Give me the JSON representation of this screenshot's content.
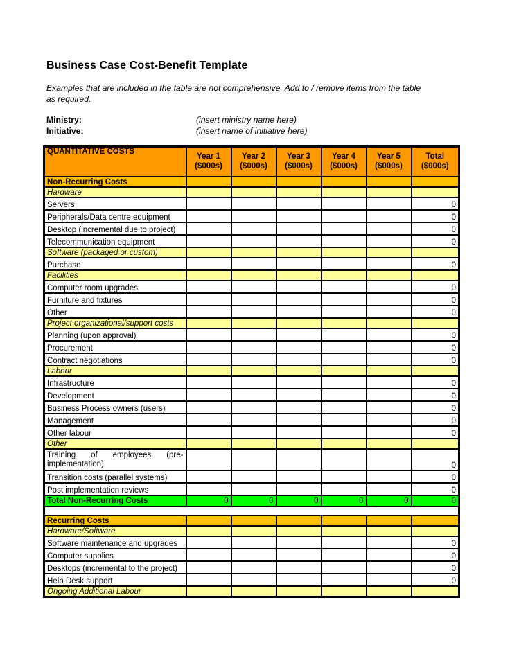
{
  "page": {
    "title": "Business Case Cost-Benefit Template",
    "note": "Examples that are included in the table are not comprehensive.  Add to / remove items from the table\nas required.",
    "fields": [
      {
        "label": "Ministry:",
        "value": "(insert ministry name here)"
      },
      {
        "label": "Initiative:",
        "value": "(insert name of initiative here)"
      }
    ]
  },
  "colors": {
    "header_orange": "#FF9900",
    "section_gold": "#FFC000",
    "subheader_yellow": "#FFFF99",
    "total_green": "#00FF00",
    "border": "#000000"
  },
  "table": {
    "title": "QUANTITATIVE COSTS",
    "columns": [
      {
        "name": "Year 1",
        "unit": "($000s)"
      },
      {
        "name": "Year 2",
        "unit": "($000s)"
      },
      {
        "name": "Year 3",
        "unit": "($000s)"
      },
      {
        "name": "Year 4",
        "unit": "($000s)"
      },
      {
        "name": "Year 5",
        "unit": "($000s)"
      },
      {
        "name": "Total",
        "unit": "($000s)"
      }
    ],
    "rows": [
      {
        "type": "section",
        "label": "Non-Recurring Costs"
      },
      {
        "type": "subheader",
        "label": "Hardware"
      },
      {
        "type": "item",
        "label": "Servers",
        "total": "0"
      },
      {
        "type": "item",
        "label": "Peripherals/Data centre equipment",
        "total": "0"
      },
      {
        "type": "item",
        "label": "Desktop (incremental due to project)",
        "total": "0"
      },
      {
        "type": "item",
        "label": "Telecommunication equipment",
        "total": "0"
      },
      {
        "type": "subheader",
        "label": "Software (packaged or custom)"
      },
      {
        "type": "item",
        "label": "Purchase",
        "total": "0"
      },
      {
        "type": "subheader",
        "label": "Facilities"
      },
      {
        "type": "item",
        "label": "Computer room upgrades",
        "total": "0"
      },
      {
        "type": "item",
        "label": "Furniture and fixtures",
        "total": "0"
      },
      {
        "type": "item",
        "label": "Other",
        "total": "0"
      },
      {
        "type": "subheader",
        "label": "Project organizational/support costs"
      },
      {
        "type": "item",
        "label": "Planning (upon approval)",
        "total": "0"
      },
      {
        "type": "item",
        "label": "Procurement",
        "total": "0"
      },
      {
        "type": "item",
        "label": "Contract negotiations",
        "total": "0"
      },
      {
        "type": "subheader",
        "label": "Labour"
      },
      {
        "type": "item",
        "label": "Infrastructure",
        "total": "0"
      },
      {
        "type": "item",
        "label": "Development",
        "total": "0"
      },
      {
        "type": "item",
        "label": "Business Process owners (users)",
        "total": "0"
      },
      {
        "type": "item",
        "label": "Management",
        "total": "0"
      },
      {
        "type": "item",
        "label": "Other labour",
        "total": "0"
      },
      {
        "type": "subheader",
        "label": "Other"
      },
      {
        "type": "item",
        "label": "Training of employees (pre-implementation)",
        "total": "0",
        "tall": true,
        "justify": true
      },
      {
        "type": "item",
        "label": "Transition costs (parallel systems)",
        "total": "0"
      },
      {
        "type": "item",
        "label": "Post implementation reviews",
        "total": "0"
      },
      {
        "type": "total",
        "label": "Total Non-Recurring Costs",
        "values": [
          "0",
          "0",
          "0",
          "0",
          "0",
          "0"
        ]
      },
      {
        "type": "spacer"
      },
      {
        "type": "section",
        "label": "Recurring Costs"
      },
      {
        "type": "subheader",
        "label": "Hardware/Software"
      },
      {
        "type": "item",
        "label": "Software maintenance and upgrades",
        "total": "0"
      },
      {
        "type": "item",
        "label": "Computer supplies",
        "total": "0"
      },
      {
        "type": "item",
        "label": "Desktops (incremental to the project)",
        "total": "0"
      },
      {
        "type": "item",
        "label": "Help Desk support",
        "total": "0"
      },
      {
        "type": "subheader",
        "label": "Ongoing Additional Labour"
      }
    ]
  }
}
